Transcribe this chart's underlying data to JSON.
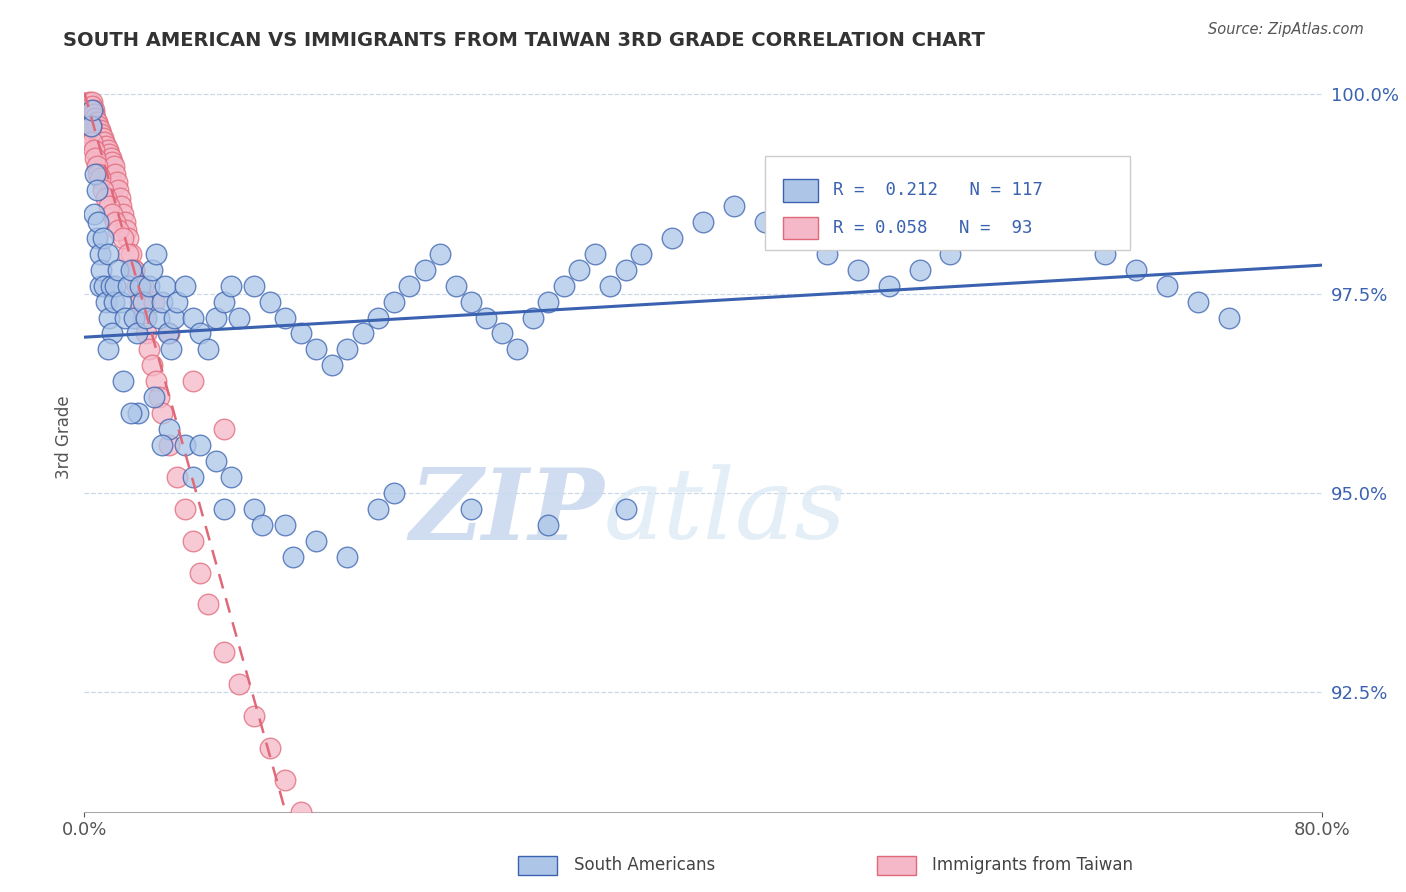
{
  "title": "SOUTH AMERICAN VS IMMIGRANTS FROM TAIWAN 3RD GRADE CORRELATION CHART",
  "source": "Source: ZipAtlas.com",
  "ylabel": "3rd Grade",
  "xlim": [
    0.0,
    0.8
  ],
  "ylim": [
    0.91,
    1.004
  ],
  "yticklabels": [
    "92.5%",
    "95.0%",
    "97.5%",
    "100.0%"
  ],
  "yticks": [
    0.925,
    0.95,
    0.975,
    1.0
  ],
  "xticks": [
    0.0,
    0.8
  ],
  "xticklabels": [
    "0.0%",
    "80.0%"
  ],
  "blue_color": "#adc6e8",
  "pink_color": "#f5b8c8",
  "blue_line_color": "#3a62b0",
  "pink_line_color": "#e06878",
  "watermark_zip": "ZIP",
  "watermark_atlas": "atlas",
  "blue_scatter_x": [
    0.004,
    0.005,
    0.006,
    0.007,
    0.008,
    0.008,
    0.009,
    0.01,
    0.01,
    0.011,
    0.012,
    0.013,
    0.014,
    0.015,
    0.016,
    0.017,
    0.018,
    0.019,
    0.02,
    0.022,
    0.024,
    0.026,
    0.028,
    0.03,
    0.032,
    0.034,
    0.036,
    0.038,
    0.04,
    0.042,
    0.044,
    0.046,
    0.048,
    0.05,
    0.052,
    0.054,
    0.056,
    0.058,
    0.06,
    0.065,
    0.07,
    0.075,
    0.08,
    0.085,
    0.09,
    0.095,
    0.1,
    0.11,
    0.12,
    0.13,
    0.14,
    0.15,
    0.16,
    0.17,
    0.18,
    0.19,
    0.2,
    0.21,
    0.22,
    0.23,
    0.24,
    0.25,
    0.26,
    0.27,
    0.28,
    0.29,
    0.3,
    0.31,
    0.32,
    0.33,
    0.34,
    0.35,
    0.36,
    0.38,
    0.4,
    0.42,
    0.44,
    0.46,
    0.48,
    0.5,
    0.52,
    0.54,
    0.56,
    0.58,
    0.6,
    0.62,
    0.64,
    0.65,
    0.66,
    0.68,
    0.7,
    0.72,
    0.74,
    0.015,
    0.025,
    0.035,
    0.045,
    0.055,
    0.065,
    0.075,
    0.085,
    0.095,
    0.11,
    0.13,
    0.15,
    0.17,
    0.19,
    0.03,
    0.05,
    0.07,
    0.09,
    0.115,
    0.135,
    0.2,
    0.25,
    0.3,
    0.35
  ],
  "blue_scatter_y": [
    0.996,
    0.998,
    0.985,
    0.99,
    0.982,
    0.988,
    0.984,
    0.98,
    0.976,
    0.978,
    0.982,
    0.976,
    0.974,
    0.98,
    0.972,
    0.976,
    0.97,
    0.974,
    0.976,
    0.978,
    0.974,
    0.972,
    0.976,
    0.978,
    0.972,
    0.97,
    0.976,
    0.974,
    0.972,
    0.976,
    0.978,
    0.98,
    0.972,
    0.974,
    0.976,
    0.97,
    0.968,
    0.972,
    0.974,
    0.976,
    0.972,
    0.97,
    0.968,
    0.972,
    0.974,
    0.976,
    0.972,
    0.976,
    0.974,
    0.972,
    0.97,
    0.968,
    0.966,
    0.968,
    0.97,
    0.972,
    0.974,
    0.976,
    0.978,
    0.98,
    0.976,
    0.974,
    0.972,
    0.97,
    0.968,
    0.972,
    0.974,
    0.976,
    0.978,
    0.98,
    0.976,
    0.978,
    0.98,
    0.982,
    0.984,
    0.986,
    0.984,
    0.982,
    0.98,
    0.978,
    0.976,
    0.978,
    0.98,
    0.982,
    0.984,
    0.986,
    0.988,
    0.982,
    0.98,
    0.978,
    0.976,
    0.974,
    0.972,
    0.968,
    0.964,
    0.96,
    0.962,
    0.958,
    0.956,
    0.956,
    0.954,
    0.952,
    0.948,
    0.946,
    0.944,
    0.942,
    0.948,
    0.96,
    0.956,
    0.952,
    0.948,
    0.946,
    0.942,
    0.95,
    0.948,
    0.946,
    0.948
  ],
  "pink_scatter_x": [
    0.003,
    0.004,
    0.004,
    0.005,
    0.005,
    0.005,
    0.006,
    0.006,
    0.006,
    0.007,
    0.007,
    0.007,
    0.008,
    0.008,
    0.008,
    0.009,
    0.009,
    0.009,
    0.01,
    0.01,
    0.01,
    0.011,
    0.011,
    0.012,
    0.012,
    0.012,
    0.013,
    0.013,
    0.014,
    0.014,
    0.015,
    0.015,
    0.016,
    0.016,
    0.017,
    0.017,
    0.018,
    0.018,
    0.019,
    0.019,
    0.02,
    0.021,
    0.022,
    0.023,
    0.024,
    0.025,
    0.026,
    0.027,
    0.028,
    0.03,
    0.032,
    0.034,
    0.036,
    0.038,
    0.04,
    0.042,
    0.044,
    0.046,
    0.048,
    0.05,
    0.055,
    0.06,
    0.065,
    0.07,
    0.075,
    0.08,
    0.09,
    0.1,
    0.11,
    0.12,
    0.13,
    0.14,
    0.004,
    0.005,
    0.006,
    0.007,
    0.008,
    0.009,
    0.01,
    0.012,
    0.014,
    0.016,
    0.018,
    0.02,
    0.022,
    0.025,
    0.028,
    0.032,
    0.038,
    0.045,
    0.055,
    0.07,
    0.09
  ],
  "pink_scatter_y": [
    0.999,
    0.998,
    0.997,
    0.999,
    0.9985,
    0.996,
    0.998,
    0.9975,
    0.995,
    0.997,
    0.996,
    0.994,
    0.9965,
    0.9955,
    0.993,
    0.996,
    0.995,
    0.992,
    0.9955,
    0.9945,
    0.991,
    0.995,
    0.9935,
    0.9945,
    0.993,
    0.99,
    0.994,
    0.992,
    0.9935,
    0.991,
    0.993,
    0.9905,
    0.9925,
    0.99,
    0.992,
    0.9895,
    0.9915,
    0.989,
    0.991,
    0.9885,
    0.99,
    0.989,
    0.988,
    0.987,
    0.986,
    0.985,
    0.984,
    0.983,
    0.982,
    0.98,
    0.978,
    0.976,
    0.974,
    0.972,
    0.97,
    0.968,
    0.966,
    0.964,
    0.962,
    0.96,
    0.956,
    0.952,
    0.948,
    0.944,
    0.94,
    0.936,
    0.93,
    0.926,
    0.922,
    0.918,
    0.914,
    0.91,
    0.996,
    0.994,
    0.993,
    0.992,
    0.991,
    0.99,
    0.9895,
    0.988,
    0.987,
    0.986,
    0.985,
    0.984,
    0.983,
    0.982,
    0.98,
    0.978,
    0.976,
    0.974,
    0.97,
    0.964,
    0.958
  ]
}
